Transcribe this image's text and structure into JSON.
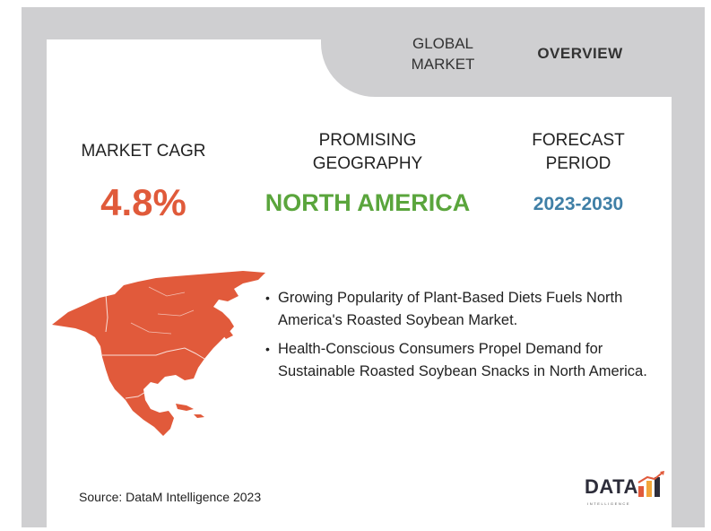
{
  "header": {
    "global_market": "GLOBAL\nMARKET",
    "overview": "OVERVIEW"
  },
  "stats": {
    "cagr": {
      "label": "MARKET CAGR",
      "value": "4.8%"
    },
    "geography": {
      "label": "PROMISING\nGEOGRAPHY",
      "value": "NORTH AMERICA"
    },
    "period": {
      "label": "FORECAST\nPERIOD",
      "value": "2023-2030"
    }
  },
  "bullets": [
    "Growing Popularity of Plant-Based Diets Fuels North America's Roasted Soybean Market.",
    "Health-Conscious Consumers Propel Demand for Sustainable Roasted Soybean Snacks in North America."
  ],
  "source": "Source: DataM Intelligence 2023",
  "logo": {
    "word": "DATA",
    "sub": "INTELLIGENCE"
  },
  "colors": {
    "frame": "#cfcfd1",
    "cagr": "#e05a3a",
    "geography": "#5aa53c",
    "period": "#3f7fa6",
    "map": "#e15a3b"
  }
}
